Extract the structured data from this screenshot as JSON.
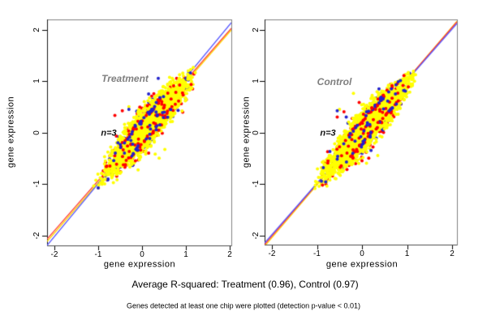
{
  "captions": {
    "line1": "Average R-squared: Treatment (0.96), Control (0.97)",
    "line2": "Genes detected at least one chip were plotted (detection p-value < 0.01)"
  },
  "axes": {
    "x_label": "gene expression",
    "y_label": "gene expression"
  },
  "colors": {
    "point_yellow": "#ffff00",
    "point_red": "#ff0000",
    "point_blue": "#2323cc",
    "line_blue": "#5252ff",
    "line_red": "#ff3232",
    "line_yellow": "#ffd300",
    "frame_gray": "#808080",
    "axis_black": "#1a1a1a",
    "title_gray": "#7f7f7f",
    "text_black": "#000000",
    "background": "#ffffff"
  },
  "chart_data": {
    "type": "scatter",
    "description": "Two side-by-side pairwise chip correlation scatter plots of gene expression (n=3 chips each); three overlaid pairwise comparisons colored yellow, red and blue with per-pair regression lines.",
    "x_ticks": [
      "-2",
      "-1",
      "0",
      "1",
      "2"
    ],
    "y_ticks": [
      "2",
      "1",
      "0",
      "-1",
      "-2"
    ],
    "x_tick_values": [
      -2,
      -1,
      0,
      1,
      2
    ],
    "y_tick_values": [
      2,
      1,
      0,
      -1,
      -2
    ],
    "x_range": [
      -2.17,
      2.04
    ],
    "y_range": [
      -2.2,
      2.2
    ],
    "grid": false,
    "legend": "none",
    "point_radius": 2,
    "panels": [
      {
        "title": "Treatment",
        "annotation": "n=3",
        "r_squared": 0.96,
        "regression_lines": [
          {
            "color_key": "line_red",
            "from": [
              -2.166,
              -2.071
            ],
            "to": [
              2.037,
              2.024
            ]
          },
          {
            "color_key": "line_yellow",
            "from": [
              -2.166,
              -2.118
            ],
            "to": [
              2.037,
              1.992
            ]
          },
          {
            "color_key": "line_blue",
            "from": [
              -2.166,
              -2.197
            ],
            "to": [
              2.037,
              2.134
            ]
          }
        ],
        "cloud": {
          "u_min": -1.08,
          "u_max": 1.33,
          "u_center": 0.12,
          "half_length": 1.27,
          "sigma": 0.13,
          "count_yellow": 2600,
          "count_red": 260,
          "count_blue": 170,
          "seed": 42
        },
        "outliers": [
          {
            "c": "yellow",
            "x": -0.06,
            "y": -0.53
          },
          {
            "c": "yellow",
            "x": 0.39,
            "y": -0.5
          },
          {
            "c": "yellow",
            "x": -0.09,
            "y": -0.73
          },
          {
            "c": "yellow",
            "x": -0.54,
            "y": -0.78
          },
          {
            "c": "yellow",
            "x": 0.52,
            "y": -0.33
          },
          {
            "c": "yellow",
            "x": 0.3,
            "y": -0.42
          },
          {
            "c": "yellow",
            "x": -0.3,
            "y": 0.5
          },
          {
            "c": "yellow",
            "x": 0.05,
            "y": 0.6
          },
          {
            "c": "red",
            "x": 0.15,
            "y": -0.4
          },
          {
            "c": "red",
            "x": -0.43,
            "y": -0.34
          },
          {
            "c": "red",
            "x": -0.62,
            "y": 0.33
          },
          {
            "c": "red",
            "x": -0.45,
            "y": 0.42
          },
          {
            "c": "red",
            "x": 0.12,
            "y": 0.52
          },
          {
            "c": "red",
            "x": 0.45,
            "y": 0.6
          },
          {
            "c": "red",
            "x": -0.15,
            "y": -0.55
          },
          {
            "c": "blue",
            "x": 0.37,
            "y": 1.05
          },
          {
            "c": "blue",
            "x": 0.15,
            "y": 0.75
          },
          {
            "c": "blue",
            "x": -0.3,
            "y": 0.45
          },
          {
            "c": "blue",
            "x": -0.55,
            "y": -0.2
          },
          {
            "c": "blue",
            "x": -1.0,
            "y": -1.08
          }
        ]
      },
      {
        "title": "Control",
        "annotation": "n=3",
        "r_squared": 0.97,
        "regression_lines": [
          {
            "color_key": "line_yellow",
            "from": [
              -2.162,
              -2.213
            ],
            "to": [
              2.108,
              2.165
            ]
          },
          {
            "color_key": "line_red",
            "from": [
              -2.162,
              -2.181
            ],
            "to": [
              2.108,
              2.15
            ]
          },
          {
            "color_key": "line_blue",
            "from": [
              -2.162,
              -2.15
            ],
            "to": [
              2.108,
              2.118
            ]
          }
        ],
        "cloud": {
          "u_min": -1.1,
          "u_max": 1.3,
          "u_center": 0.1,
          "half_length": 1.26,
          "sigma": 0.13,
          "count_yellow": 2600,
          "count_red": 260,
          "count_blue": 170,
          "seed": 1337
        },
        "outliers": [
          {
            "c": "yellow",
            "x": -0.19,
            "y": 0.76
          },
          {
            "c": "yellow",
            "x": -0.5,
            "y": 0.45
          },
          {
            "c": "yellow",
            "x": 0.1,
            "y": -0.6
          },
          {
            "c": "yellow",
            "x": 0.35,
            "y": -0.45
          },
          {
            "c": "yellow",
            "x": -0.2,
            "y": -0.6
          },
          {
            "c": "yellow",
            "x": -0.75,
            "y": -0.5
          },
          {
            "c": "yellow",
            "x": 0.5,
            "y": 0.55
          },
          {
            "c": "red",
            "x": 0.0,
            "y": -0.55
          },
          {
            "c": "red",
            "x": 0.15,
            "y": -0.5
          },
          {
            "c": "red",
            "x": -0.4,
            "y": 0.4
          },
          {
            "c": "red",
            "x": -0.55,
            "y": 0.3
          },
          {
            "c": "red",
            "x": 0.3,
            "y": 0.45
          },
          {
            "c": "red",
            "x": -0.2,
            "y": -0.5
          },
          {
            "c": "blue",
            "x": -0.55,
            "y": 0.42
          },
          {
            "c": "blue",
            "x": -0.35,
            "y": 0.3
          },
          {
            "c": "blue",
            "x": 0.2,
            "y": -0.35
          },
          {
            "c": "blue",
            "x": -0.9,
            "y": -0.95
          },
          {
            "c": "blue",
            "x": 0.1,
            "y": 0.4
          }
        ]
      }
    ]
  }
}
